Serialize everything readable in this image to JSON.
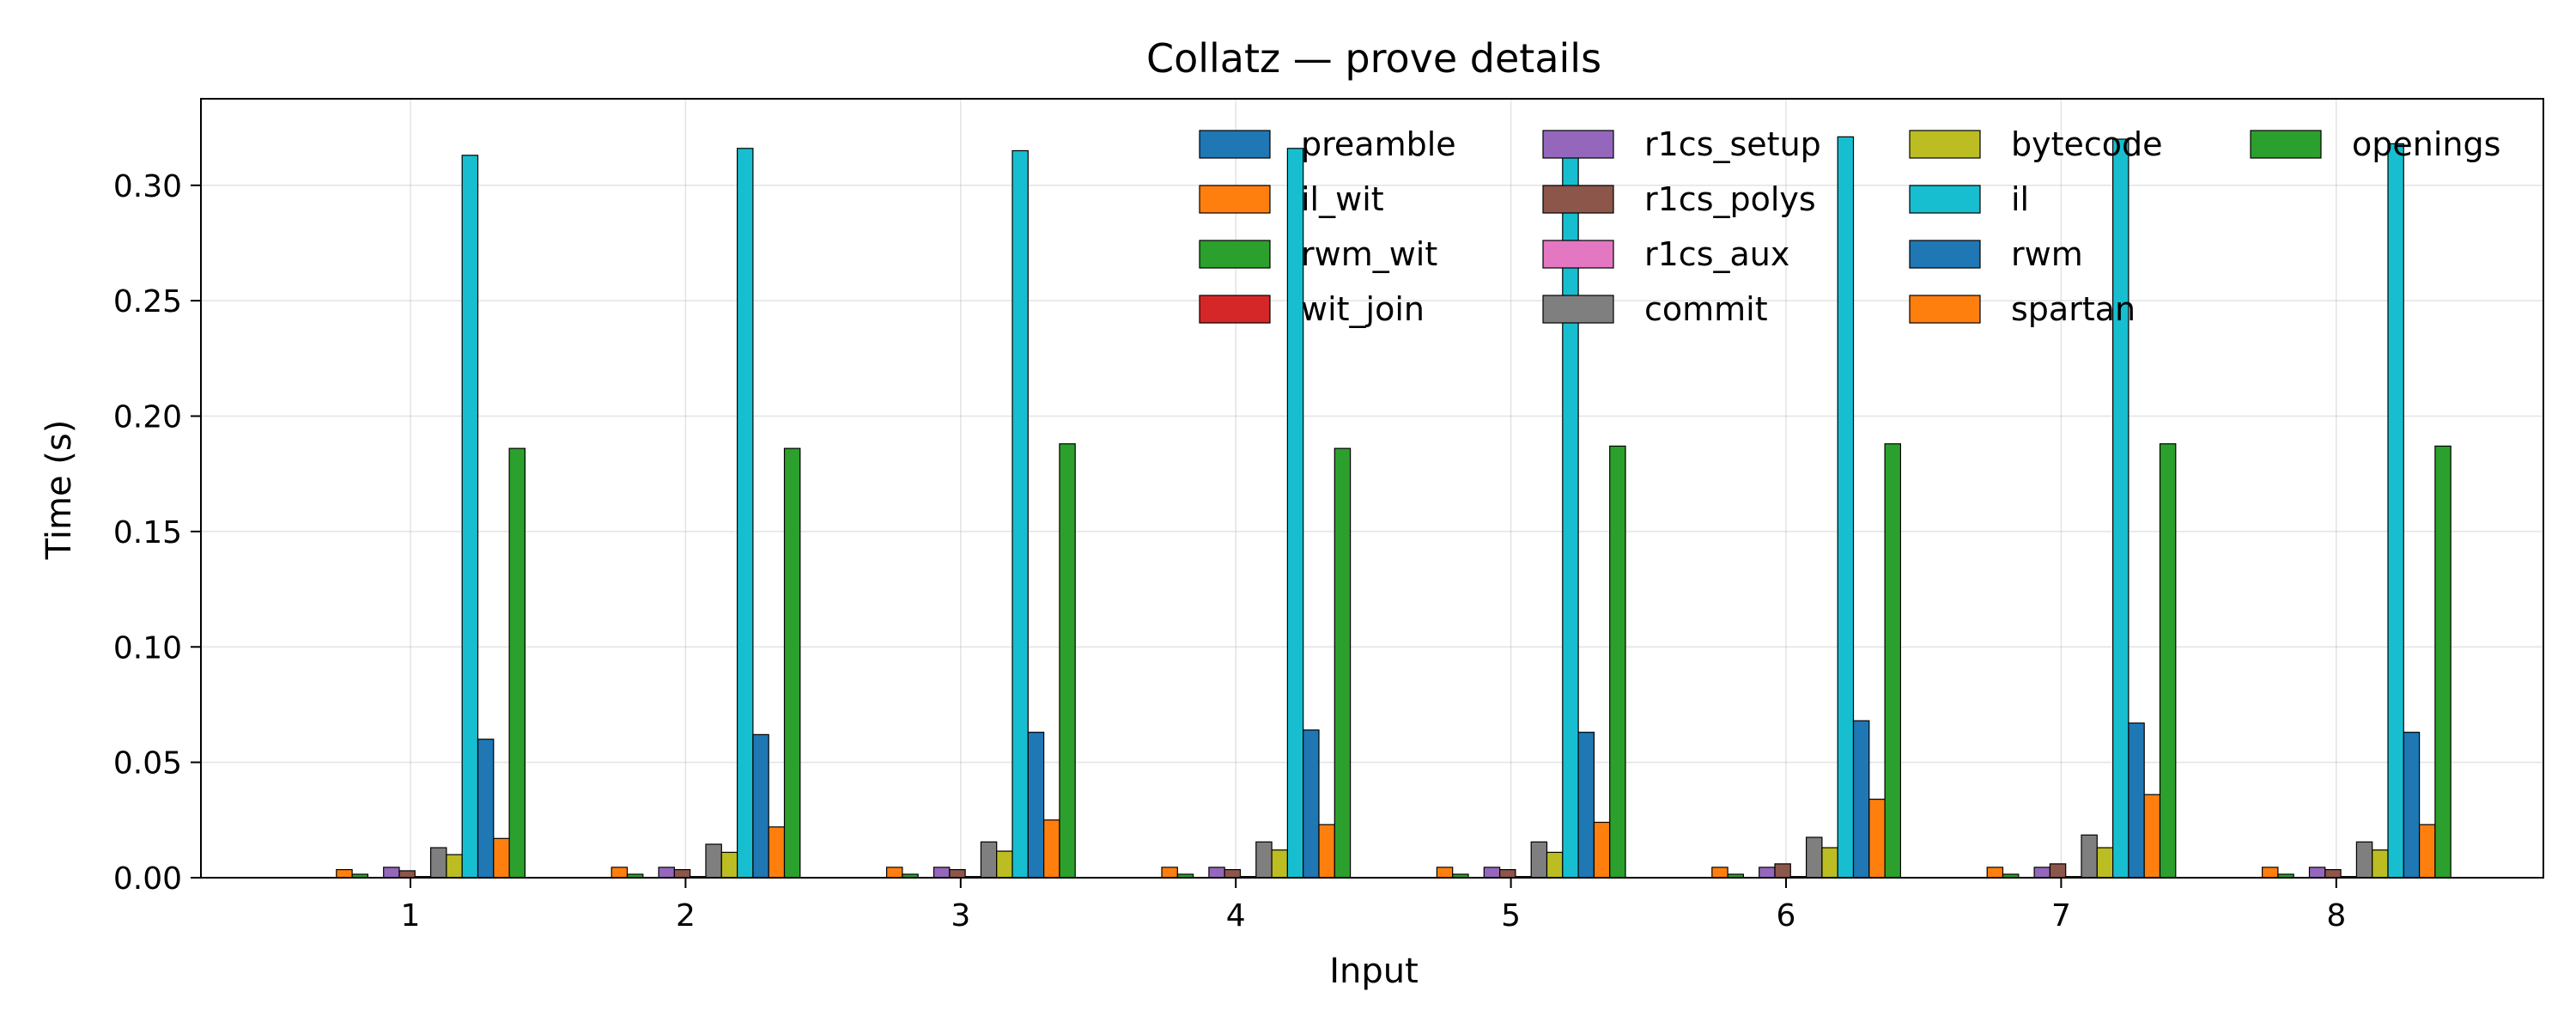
{
  "chart_data": {
    "type": "bar",
    "title": "Collatz — prove details",
    "xlabel": "Input",
    "ylabel": "Time (s)",
    "categories": [
      "1",
      "2",
      "3",
      "4",
      "5",
      "6",
      "7",
      "8"
    ],
    "ylim": [
      0,
      0.3375
    ],
    "yticks": [
      "0.00",
      "0.05",
      "0.10",
      "0.15",
      "0.20",
      "0.25",
      "0.30"
    ],
    "grid": true,
    "legend_position": "top-right",
    "legend_columns": 4,
    "series": [
      {
        "name": "preamble",
        "color": "#1f77b4",
        "values": [
          0.0,
          0.0,
          0.0,
          0.0,
          0.0,
          0.0,
          0.0,
          0.0
        ]
      },
      {
        "name": "il_wit",
        "color": "#ff7f0e",
        "values": [
          0.0035,
          0.0045,
          0.0045,
          0.0045,
          0.0045,
          0.0045,
          0.0045,
          0.0045
        ]
      },
      {
        "name": "rwm_wit",
        "color": "#2ca02c",
        "values": [
          0.0015,
          0.0015,
          0.0015,
          0.0015,
          0.0015,
          0.0015,
          0.0015,
          0.0015
        ]
      },
      {
        "name": "wit_join",
        "color": "#d62728",
        "values": [
          0.0,
          0.0,
          0.0,
          0.0,
          0.0,
          0.0,
          0.0,
          0.0
        ]
      },
      {
        "name": "r1cs_setup",
        "color": "#9467bd",
        "values": [
          0.0045,
          0.0045,
          0.0045,
          0.0045,
          0.0045,
          0.0045,
          0.0045,
          0.0045
        ]
      },
      {
        "name": "r1cs_polys",
        "color": "#8c564b",
        "values": [
          0.003,
          0.0035,
          0.0035,
          0.0035,
          0.0035,
          0.006,
          0.006,
          0.0035
        ]
      },
      {
        "name": "r1cs_aux",
        "color": "#e377c2",
        "values": [
          0.0005,
          0.0005,
          0.0005,
          0.0005,
          0.0005,
          0.0005,
          0.0005,
          0.0005
        ]
      },
      {
        "name": "commit",
        "color": "#7f7f7f",
        "values": [
          0.013,
          0.0145,
          0.0155,
          0.0155,
          0.0155,
          0.0175,
          0.0185,
          0.0155
        ]
      },
      {
        "name": "bytecode",
        "color": "#bcbd22",
        "values": [
          0.01,
          0.011,
          0.0115,
          0.012,
          0.011,
          0.013,
          0.013,
          0.012
        ]
      },
      {
        "name": "il",
        "color": "#17becf",
        "values": [
          0.313,
          0.316,
          0.315,
          0.316,
          0.317,
          0.321,
          0.32,
          0.318
        ]
      },
      {
        "name": "rwm",
        "color": "#1f77b4",
        "values": [
          0.06,
          0.062,
          0.063,
          0.064,
          0.063,
          0.068,
          0.067,
          0.063
        ]
      },
      {
        "name": "spartan",
        "color": "#ff7f0e",
        "values": [
          0.017,
          0.022,
          0.025,
          0.023,
          0.024,
          0.034,
          0.036,
          0.023
        ]
      },
      {
        "name": "openings",
        "color": "#2ca02c",
        "values": [
          0.186,
          0.186,
          0.188,
          0.186,
          0.187,
          0.188,
          0.188,
          0.187
        ]
      }
    ]
  }
}
